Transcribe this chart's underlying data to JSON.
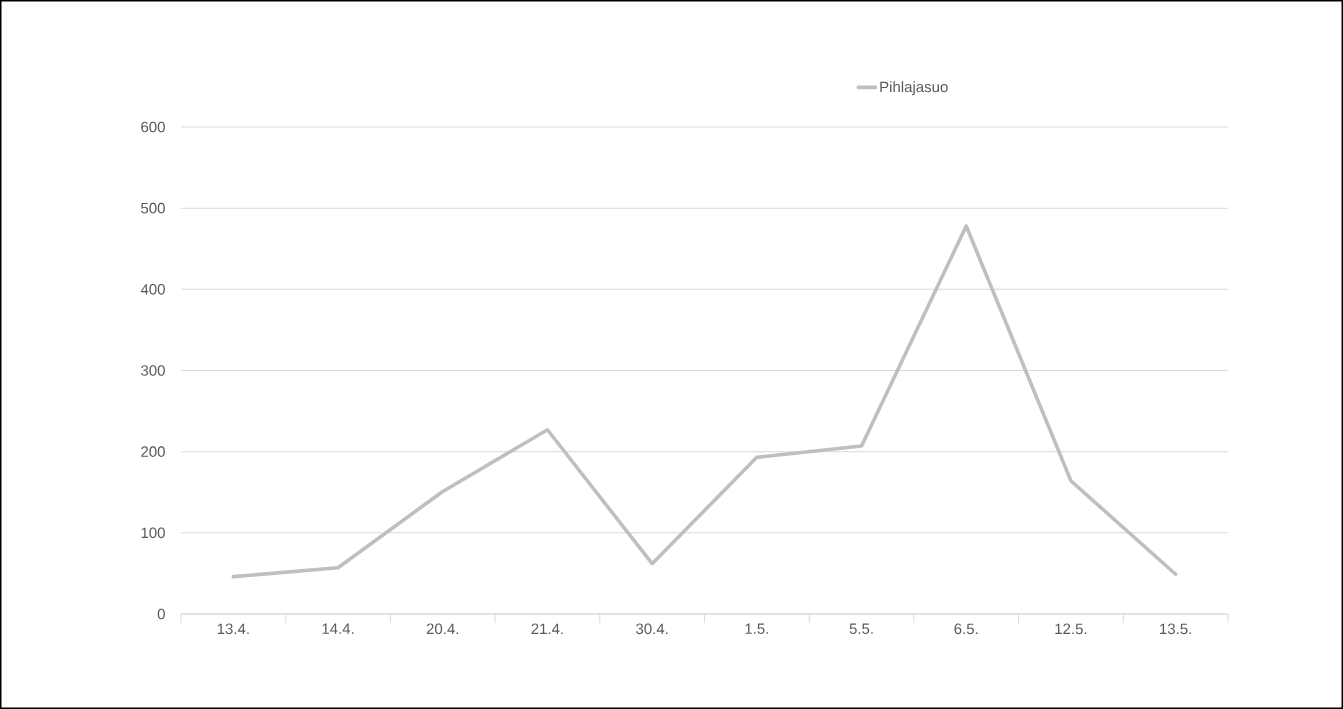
{
  "chart_data": {
    "type": "line",
    "categories": [
      "13.4.",
      "14.4.",
      "20.4.",
      "21.4.",
      "30.4.",
      "1.5.",
      "5.5.",
      "6.5.",
      "12.5.",
      "13.5."
    ],
    "series": [
      {
        "name": "Pihlajasuo",
        "color": "#bfbfbf",
        "values": [
          46,
          57,
          151,
          227,
          62,
          193,
          207,
          478,
          164,
          49
        ]
      }
    ],
    "ylim": [
      0,
      600
    ],
    "yticks": [
      0,
      100,
      200,
      300,
      400,
      500,
      600
    ],
    "grid": "y",
    "legend": "top",
    "marker": "none",
    "line_style": "solid"
  }
}
